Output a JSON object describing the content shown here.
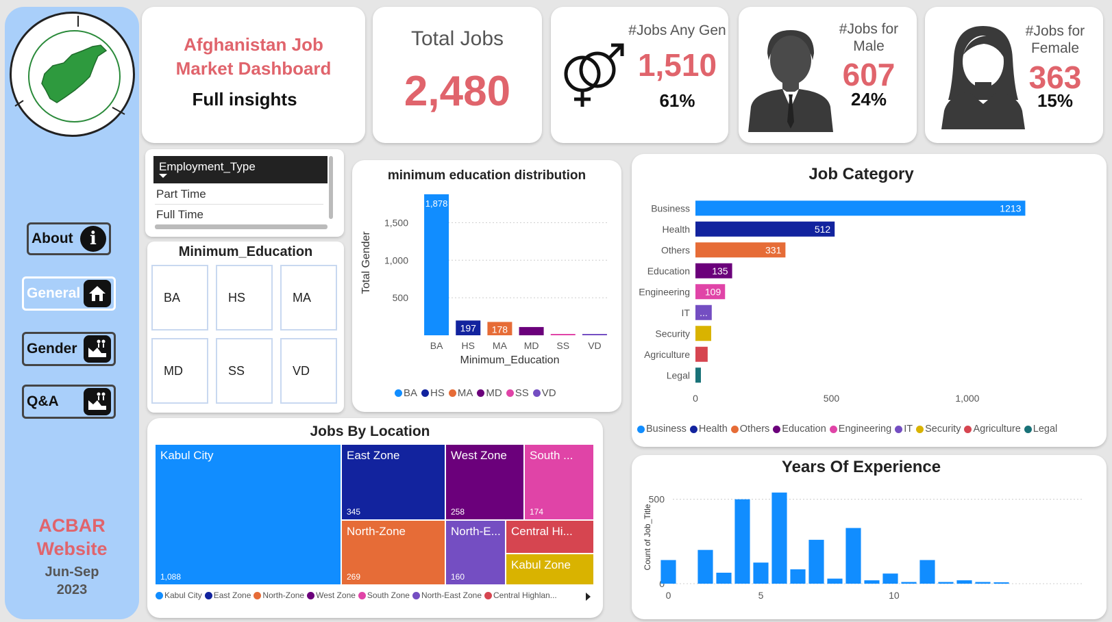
{
  "sidebar": {
    "nav": [
      {
        "label": "About",
        "icon": "info-icon"
      },
      {
        "label": "General",
        "icon": "home-icon"
      },
      {
        "label": "Gender",
        "icon": "gender-chart-icon"
      },
      {
        "label": "Q&A",
        "icon": "qa-chart-icon"
      }
    ],
    "acbar_line1": "ACBAR",
    "acbar_line2": "Website",
    "period_line1": "Jun-Sep",
    "period_line2": "2023"
  },
  "header": {
    "title_line1": "Afghanistan Job",
    "title_line2": "Market Dashboard",
    "subtitle": "Full insights"
  },
  "kpis": {
    "total": {
      "label": "Total Jobs",
      "value": "2,480"
    },
    "any_gender": {
      "label": "#Jobs Any Gen",
      "value": "1,510",
      "pct": "61%"
    },
    "male": {
      "label_line1": "#Jobs for",
      "label_line2": "Male",
      "value": "607",
      "pct": "24%"
    },
    "female": {
      "label_line1": "#Jobs for",
      "label_line2": "Female",
      "value": "363",
      "pct": "15%"
    }
  },
  "employment_slicer": {
    "header": "Employment_Type",
    "items": [
      "Part Time",
      "Full Time"
    ]
  },
  "education_slicer": {
    "title": "Minimum_Education",
    "tiles": [
      "BA",
      "HS",
      "MA",
      "MD",
      "SS",
      "VD"
    ]
  },
  "colors": {
    "blue": "#118dff",
    "navy": "#12239e",
    "orange": "#e66c37",
    "purple": "#6b007b",
    "pink": "#e044a7",
    "violet": "#744ec2",
    "gold": "#d9b300",
    "red": "#d64550",
    "teal": "#197278",
    "accent": "#e0646c"
  },
  "chart_data": [
    {
      "type": "bar",
      "title": "minimum education distribution",
      "xlabel": "Minimum_Education",
      "ylabel": "Total Gender",
      "categories": [
        "BA",
        "HS",
        "MA",
        "MD",
        "SS",
        "VD"
      ],
      "values": [
        1878,
        197,
        178,
        110,
        10,
        10
      ],
      "labels": [
        "1,878",
        "197",
        "178",
        "",
        "",
        ""
      ],
      "colors": [
        "#118dff",
        "#12239e",
        "#e66c37",
        "#6b007b",
        "#e044a7",
        "#744ec2"
      ],
      "yticks": [
        500,
        1000,
        1500
      ],
      "ytick_labels": [
        "500",
        "1,000",
        "1,500"
      ],
      "ylim": [
        0,
        1950
      ],
      "legend": [
        "BA",
        "HS",
        "MA",
        "MD",
        "SS",
        "VD"
      ]
    },
    {
      "type": "bar",
      "orientation": "horizontal",
      "title": "Job Category",
      "categories": [
        "Business",
        "Health",
        "Others",
        "Education",
        "Engineering",
        "IT",
        "Security",
        "Agriculture",
        "Legal"
      ],
      "values": [
        1213,
        512,
        331,
        135,
        109,
        60,
        58,
        45,
        18
      ],
      "labels": [
        "1213",
        "512",
        "331",
        "135",
        "109",
        "...",
        "",
        "",
        ""
      ],
      "colors": [
        "#118dff",
        "#12239e",
        "#e66c37",
        "#6b007b",
        "#e044a7",
        "#744ec2",
        "#d9b300",
        "#d64550",
        "#197278"
      ],
      "xticks": [
        0,
        500,
        1000
      ],
      "xtick_labels": [
        "0",
        "500",
        "1,000"
      ],
      "xlim": [
        0,
        1300
      ],
      "legend": [
        "Business",
        "Health",
        "Others",
        "Education",
        "Engineering",
        "IT",
        "Security",
        "Agriculture",
        "Legal"
      ]
    },
    {
      "type": "treemap",
      "title": "Jobs By Location",
      "items": [
        {
          "name": "Kabul City",
          "value": "1,088",
          "color": "#118dff"
        },
        {
          "name": "East Zone",
          "value": "345",
          "color": "#12239e"
        },
        {
          "name": "West Zone",
          "value": "258",
          "color": "#6b007b"
        },
        {
          "name": "South ...",
          "value": "174",
          "color": "#e044a7"
        },
        {
          "name": "North-Zone",
          "value": "269",
          "color": "#e66c37"
        },
        {
          "name": "North-E...",
          "value": "160",
          "color": "#744ec2"
        },
        {
          "name": "Central Hi...",
          "value": "",
          "color": "#d64550"
        },
        {
          "name": "Kabul Zone",
          "value": "",
          "color": "#d9b300"
        }
      ],
      "legend": [
        "Kabul City",
        "East Zone",
        "North-Zone",
        "West Zone",
        "South Zone",
        "North-East Zone",
        "Central Highlan..."
      ]
    },
    {
      "type": "bar",
      "title": "Years Of Experience",
      "ylabel": "Count of Job_Title",
      "x": [
        0,
        1,
        2,
        3,
        4,
        5,
        6,
        7,
        8,
        9,
        10,
        11,
        12,
        13,
        14,
        15,
        16,
        17,
        18,
        19
      ],
      "values": [
        140,
        0,
        200,
        65,
        500,
        125,
        540,
        85,
        260,
        30,
        330,
        20,
        60,
        10,
        140,
        10,
        20,
        10,
        5,
        0
      ],
      "xticks": [
        0,
        5,
        10
      ],
      "yticks": [
        0,
        500
      ],
      "ylim": [
        0,
        600
      ],
      "xlim": [
        -0.5,
        19.5
      ]
    }
  ]
}
